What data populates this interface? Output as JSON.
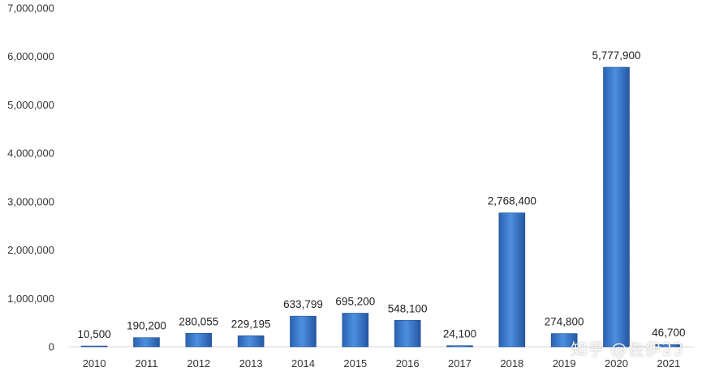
{
  "chart_data": {
    "type": "bar",
    "categories": [
      "2010",
      "2011",
      "2012",
      "2013",
      "2014",
      "2015",
      "2016",
      "2017",
      "2018",
      "2019",
      "2020",
      "2021"
    ],
    "values": [
      10500,
      190200,
      280055,
      229195,
      633799,
      695200,
      548100,
      24100,
      2768400,
      274800,
      5777900,
      46700
    ],
    "data_labels": [
      "10,500",
      "190,200",
      "280,055",
      "229,195",
      "633,799",
      "695,200",
      "548,100",
      "24,100",
      "2,768,400",
      "274,800",
      "5,777,900",
      "46,700"
    ],
    "yticks": [
      0,
      1000000,
      2000000,
      3000000,
      4000000,
      5000000,
      6000000,
      7000000
    ],
    "ytick_labels": [
      "0",
      "1,000,000",
      "2,000,000",
      "3,000,000",
      "4,000,000",
      "5,000,000",
      "6,000,000",
      "7,000,000"
    ],
    "ylim": [
      0,
      7000000
    ],
    "grid": false,
    "bar_color": "#3f7fcf",
    "title": "",
    "xlabel": "",
    "ylabel": ""
  },
  "watermark": "知乎 @佐伊23"
}
